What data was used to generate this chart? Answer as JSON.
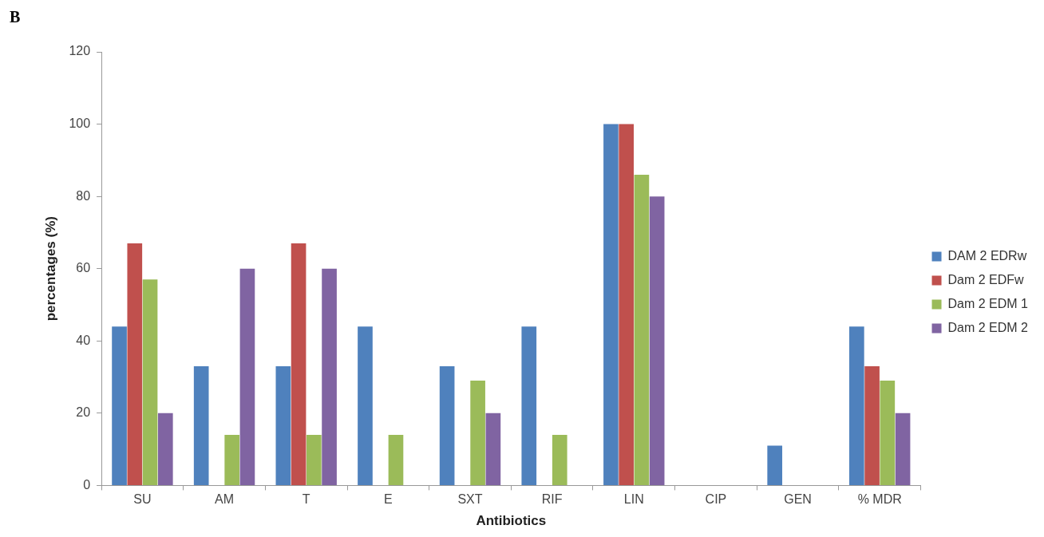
{
  "chart_data": {
    "type": "bar",
    "xlabel": "Antibiotics",
    "ylabel": "percentages (%)",
    "annotations": [
      "B"
    ],
    "categories": [
      "SU",
      "AM",
      "T",
      "E",
      "SXT",
      "RIF",
      "LIN",
      "CIP",
      "GEN",
      "% MDR"
    ],
    "series": [
      {
        "name": "DAM 2 EDRw",
        "color": "#4f81bd",
        "values": [
          44,
          33,
          33,
          44,
          33,
          44,
          100,
          0,
          11,
          44
        ]
      },
      {
        "name": "Dam 2 EDFw",
        "color": "#c0504d",
        "values": [
          67,
          0,
          67,
          0,
          0,
          0,
          100,
          0,
          0,
          33
        ]
      },
      {
        "name": "Dam 2 EDM 1",
        "color": "#9bbb59",
        "values": [
          57,
          14,
          14,
          14,
          29,
          14,
          86,
          0,
          0,
          29
        ]
      },
      {
        "name": "Dam 2 EDM 2",
        "color": "#8064a2",
        "values": [
          20,
          60,
          60,
          0,
          20,
          0,
          80,
          0,
          0,
          20
        ]
      }
    ],
    "ylim": [
      0,
      120
    ],
    "yticks": [
      0,
      20,
      40,
      60,
      80,
      100,
      120
    ],
    "grid": false,
    "legend": "right"
  }
}
